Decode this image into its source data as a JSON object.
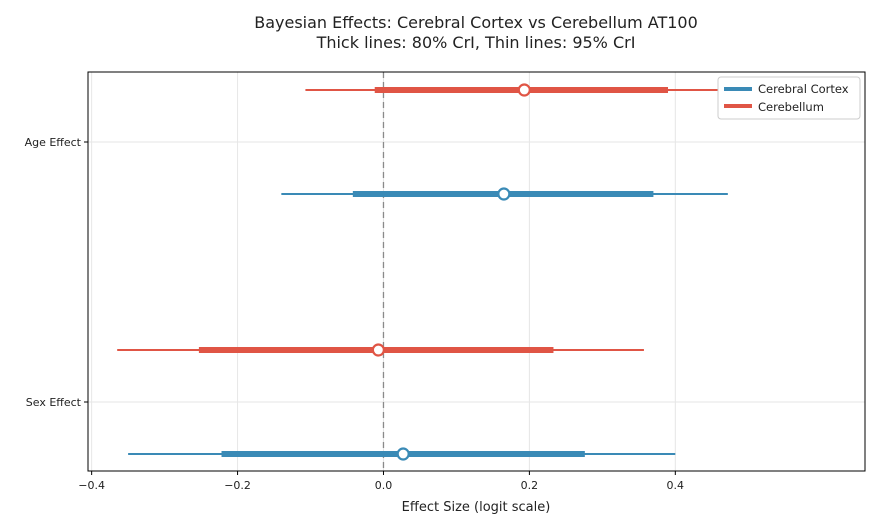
{
  "chart_data": {
    "type": "forest",
    "title": "Bayesian Effects: Cerebral Cortex vs Cerebellum AT100",
    "subtitle": "Thick lines: 80% CrI, Thin lines: 95% CrI",
    "xlabel": "Effect Size (logit scale)",
    "ylabel": "",
    "xlim": [
      -0.405,
      0.66
    ],
    "xticks": [
      -0.4,
      -0.2,
      0.0,
      0.2,
      0.4
    ],
    "xtick_labels": [
      "−0.4",
      "−0.2",
      "0.0",
      "0.2",
      "0.4"
    ],
    "categories": [
      "Age Effect",
      "Sex Effect"
    ],
    "reference_line": 0,
    "grid": true,
    "legend_position": "top-right",
    "series": [
      {
        "name": "Cerebral Cortex",
        "color": "#3a8ab6",
        "points": [
          {
            "category": "Age Effect",
            "mean": 0.165,
            "ci80": [
              -0.042,
              0.37
            ],
            "ci95": [
              -0.14,
              0.472
            ]
          },
          {
            "category": "Sex Effect",
            "mean": 0.027,
            "ci80": [
              -0.222,
              0.276
            ],
            "ci95": [
              -0.35,
              0.4
            ]
          }
        ]
      },
      {
        "name": "Cerebellum",
        "color": "#e05545",
        "points": [
          {
            "category": "Age Effect",
            "mean": 0.193,
            "ci80": [
              -0.012,
              0.39
            ],
            "ci95": [
              -0.107,
              0.5
            ]
          },
          {
            "category": "Sex Effect",
            "mean": -0.007,
            "ci80": [
              -0.253,
              0.233
            ],
            "ci95": [
              -0.365,
              0.357
            ]
          }
        ]
      }
    ]
  }
}
